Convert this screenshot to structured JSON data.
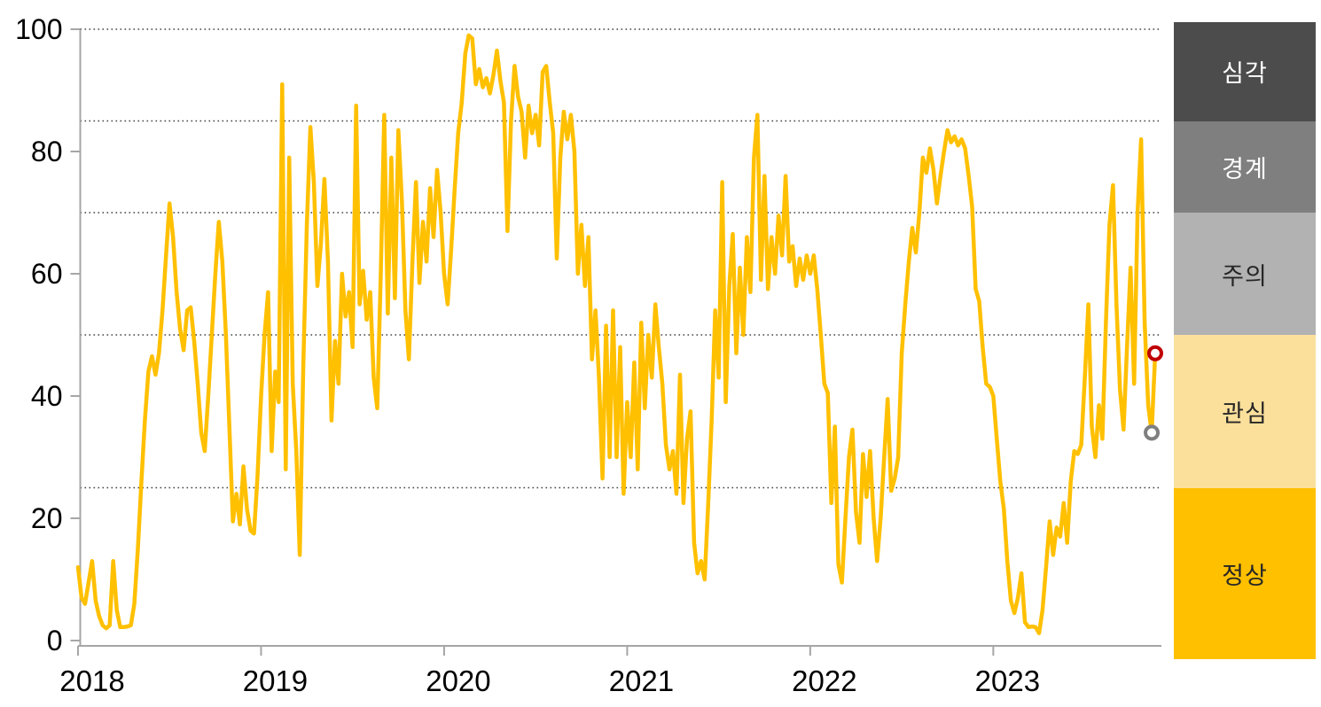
{
  "legend": {
    "bands": [
      {
        "label": "심각",
        "color": "#4C4C4C",
        "text_color": "#FFFFFF",
        "range": [
          85,
          100
        ]
      },
      {
        "label": "경계",
        "color": "#7F7F7F",
        "text_color": "#FFFFFF",
        "range": [
          70,
          85
        ]
      },
      {
        "label": "주의",
        "color": "#B2B2B2",
        "text_color": "#262626",
        "range": [
          50,
          70
        ]
      },
      {
        "label": "관심",
        "color": "#FBE09C",
        "text_color": "#262626",
        "range": [
          25,
          50
        ]
      },
      {
        "label": "정상",
        "color": "#FFC000",
        "text_color": "#262626",
        "range": [
          0,
          25
        ]
      }
    ]
  },
  "chart_data": {
    "type": "line",
    "title": "",
    "x_axis": {
      "tick_labels": [
        "2018",
        "2019",
        "2020",
        "2021",
        "2022",
        "2023"
      ],
      "points_per_year": 52
    },
    "y_axis": {
      "ticks": [
        0,
        20,
        40,
        60,
        80,
        100
      ],
      "tick_labels": [
        "0",
        "20",
        "40",
        "60",
        "80",
        "100"
      ],
      "range": [
        0,
        100
      ]
    },
    "gridlines": [
      25,
      50,
      70,
      85,
      100
    ],
    "grid_color": "#404040",
    "axis_color": "#A6A6A6",
    "series": [
      {
        "name": "weekly-risk-index",
        "color": "#FFC000",
        "x_start_year": 2018,
        "frequency": "weekly",
        "values": [
          12,
          7,
          6,
          9.5,
          13,
          6.5,
          4,
          2.5,
          2,
          2.5,
          13,
          5,
          2.2,
          2.2,
          2.3,
          2.5,
          6,
          15,
          26,
          36,
          44,
          46.5,
          43.5,
          47,
          54,
          63,
          71.5,
          66,
          57,
          51,
          47.5,
          54,
          54.5,
          49,
          42,
          34,
          31,
          40,
          50,
          60,
          68.5,
          62,
          50,
          35,
          19.5,
          24,
          19,
          28.5,
          21.5,
          18,
          17.5,
          27,
          40,
          50,
          57,
          31,
          44,
          39,
          91,
          28,
          79,
          42,
          31,
          14,
          45,
          68,
          84,
          75,
          58,
          65,
          75.5,
          62,
          36,
          49,
          42,
          60,
          53,
          57,
          48,
          87.5,
          55,
          60.5,
          52.5,
          57,
          43,
          38,
          60,
          86,
          53.5,
          79,
          56,
          83.5,
          72,
          54,
          46,
          62,
          75,
          58.5,
          68.5,
          62,
          74,
          66,
          77,
          70,
          60,
          55,
          64,
          74,
          83,
          88,
          96,
          99,
          98.5,
          91,
          93.5,
          90.5,
          92,
          89.5,
          92.5,
          96.5,
          91.5,
          88,
          67,
          85,
          94,
          89,
          86.5,
          79,
          87.5,
          83,
          86,
          81,
          93,
          94,
          88,
          83,
          62.5,
          79,
          86.5,
          82,
          86,
          80,
          60,
          68,
          58,
          66,
          46,
          54,
          43,
          26.5,
          51.5,
          30,
          54,
          30,
          48,
          24,
          39,
          30,
          45.5,
          28,
          52,
          38,
          50,
          43,
          55,
          48,
          42,
          32,
          28,
          31,
          24,
          43.5,
          22.5,
          33,
          37.5,
          16,
          11,
          13,
          10,
          22,
          36,
          54,
          43,
          75,
          39,
          58,
          66.5,
          47,
          61,
          50,
          66,
          57,
          79,
          86,
          59,
          76,
          57.5,
          66,
          60,
          69.5,
          63,
          76,
          62,
          64.5,
          58,
          62.5,
          59,
          63,
          60,
          63,
          57.5,
          50,
          42,
          40.5,
          22.5,
          35,
          12.5,
          9.5,
          20,
          30,
          34.5,
          21,
          16,
          30.5,
          23.5,
          31,
          20,
          13,
          20,
          30,
          39.5,
          24.5,
          26.5,
          30,
          47,
          55,
          62,
          67.5,
          63.5,
          70,
          79,
          76.5,
          80.5,
          77,
          71.5,
          76,
          80,
          83.5,
          81.5,
          82.5,
          81,
          82,
          80.5,
          76,
          71,
          57.5,
          55.5,
          48,
          42,
          41.5,
          40,
          33,
          26,
          21.5,
          13,
          6.5,
          4.5,
          7,
          11,
          3,
          2.2,
          2.3,
          2.2,
          1.2,
          5,
          12,
          19.5,
          14,
          18.5,
          17,
          22.5,
          16,
          26,
          31,
          30.5,
          32,
          43,
          55,
          35,
          30,
          38.5,
          33,
          52,
          68,
          74.5,
          55,
          41,
          34.5,
          48,
          61,
          42,
          70,
          82,
          52,
          38.5,
          34,
          47
        ]
      }
    ],
    "markers": [
      {
        "name": "latest-week-marker",
        "color": "#C00000",
        "index": 306,
        "value": 47
      },
      {
        "name": "previous-week-marker",
        "color": "#7F7F7F",
        "index": 305,
        "value": 34
      }
    ]
  }
}
